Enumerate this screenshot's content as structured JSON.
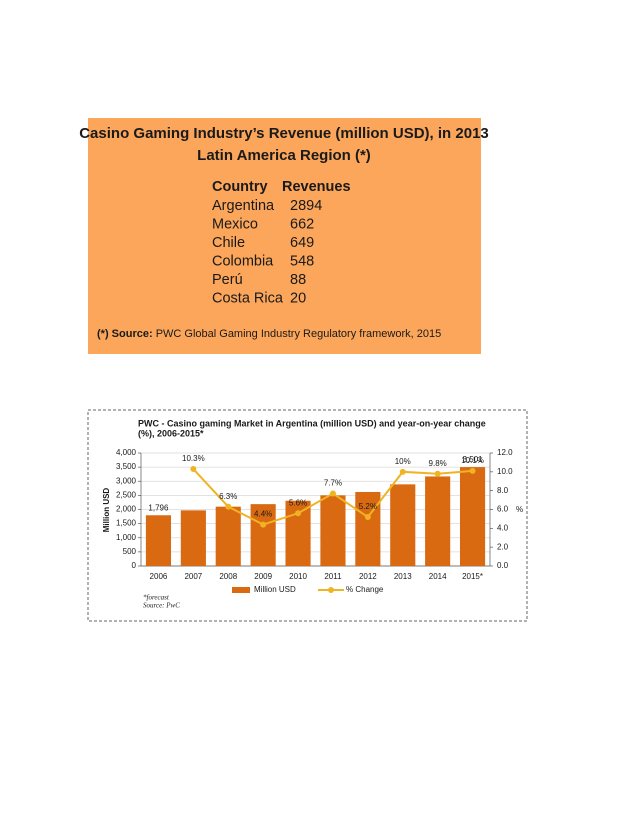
{
  "table": {
    "title": [
      "Casino Gaming Industry’s Revenue (million USD), in 2013",
      "Latin America Region (*)"
    ],
    "header": [
      "Country",
      "Revenues"
    ],
    "rows": [
      [
        "Argentina",
        2894
      ],
      [
        "Mexico",
        662
      ],
      [
        "Chile",
        649
      ],
      [
        "Colombia",
        548
      ],
      [
        "Perú",
        88
      ],
      [
        "Costa Rica",
        20
      ]
    ],
    "footnote": {
      "label": "(*) Source:",
      "text": "PWC  Global Gaming Industry Regulatory framework, 2015"
    }
  },
  "chart_data": {
    "type": "bar",
    "title": [
      "PWC - Casino gaming Market in Argentina (million USD) and year-on-year change",
      "(%), 2006-2015*"
    ],
    "categories": [
      "2006",
      "2007",
      "2008",
      "2009",
      "2010",
      "2011",
      "2012",
      "2013",
      "2014",
      "2015*"
    ],
    "series": [
      {
        "name": "Million USD",
        "type": "bar",
        "color": "#d96a12",
        "values": [
          1796,
          1970,
          2100,
          2190,
          2310,
          2500,
          2620,
          2890,
          3170,
          3501
        ],
        "value_labels": [
          "1,796",
          null,
          null,
          null,
          null,
          null,
          null,
          null,
          null,
          "3,501"
        ]
      },
      {
        "name": "% Change",
        "type": "line",
        "axis": "y2",
        "color": "#f0b323",
        "values": [
          null,
          10.3,
          6.3,
          4.4,
          5.6,
          7.7,
          5.2,
          10,
          9.8,
          10.1
        ],
        "value_labels": [
          null,
          "10.3%",
          "6.3%",
          "4.4%",
          "5.6%",
          "7.7%",
          "5.2%",
          "10%",
          "9.8%",
          "10.1%"
        ]
      }
    ],
    "y_label": "Million USD",
    "y2_label": "%",
    "ylim": [
      0,
      4000
    ],
    "yticks": [
      0,
      500,
      {
        "value": 1000,
        "label": "1,000"
      },
      {
        "value": 1500,
        "label": "1,500"
      },
      {
        "value": 2000,
        "label": "2,000"
      },
      {
        "value": 2500,
        "label": "2,500"
      },
      {
        "value": 3000,
        "label": "3,000"
      },
      {
        "value": 3500,
        "label": "3,500"
      },
      {
        "value": 4000,
        "label": "4,000"
      }
    ],
    "y2lim": [
      0,
      12
    ],
    "y2ticks": [
      {
        "value": 0,
        "label": "0.0"
      },
      {
        "value": 2,
        "label": "2.0"
      },
      {
        "value": 4,
        "label": "4.0"
      },
      {
        "value": 6,
        "label": "6.0"
      },
      {
        "value": 8,
        "label": "8.0"
      },
      {
        "value": 10,
        "label": "10.0"
      },
      {
        "value": 12,
        "label": "12.0"
      }
    ],
    "grid": true,
    "notes": [
      "*forecast",
      "Source: PwC"
    ]
  }
}
